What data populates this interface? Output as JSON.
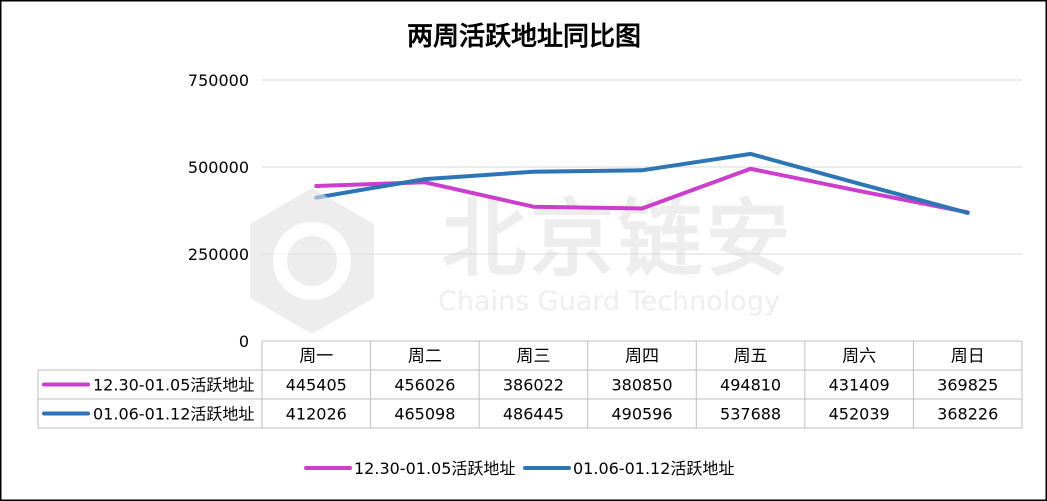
{
  "chart_data": {
    "type": "line",
    "title": "两周活跃地址同比图",
    "categories": [
      "周一",
      "周二",
      "周三",
      "周四",
      "周五",
      "周六",
      "周日"
    ],
    "series": [
      {
        "name": "12.30-01.05活跃地址",
        "color": "#CC3FCC",
        "values": [
          445405,
          456026,
          386022,
          380850,
          494810,
          431409,
          369825
        ]
      },
      {
        "name": "01.06-01.12活跃地址",
        "color": "#2E75B6",
        "values": [
          412026,
          465098,
          486445,
          490596,
          537688,
          452039,
          368226
        ]
      }
    ],
    "ylim": [
      0,
      750000
    ],
    "yticks": [
      0,
      250000,
      500000,
      750000
    ],
    "grid": true,
    "data_table": true,
    "legend": "bottom"
  },
  "watermark": {
    "cn": "北京链安",
    "en": "Chains Guard Technology"
  }
}
